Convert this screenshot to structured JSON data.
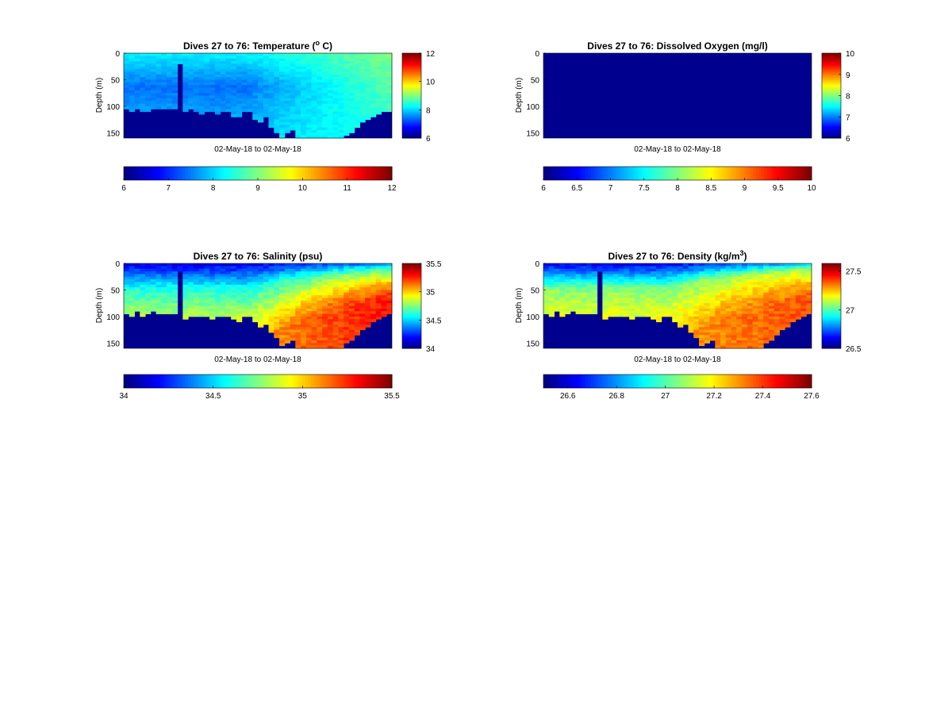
{
  "figure": {
    "colormap": "jet",
    "background": "#ffffff",
    "fill_color": "#00008f"
  },
  "chart_data": [
    {
      "type": "heatmap",
      "title": "Dives 27 to 76: Temperature (",
      "title_sup": "o",
      "title_tail": " C)",
      "ylabel": "Depth (m)",
      "xlabel": "02-May-18 to 02-May-18",
      "x": {
        "dives": [
          27,
          76
        ]
      },
      "ylim": [
        160,
        0
      ],
      "yticks": [
        "0",
        "50",
        "100",
        "150"
      ],
      "clim": [
        6,
        12
      ],
      "colorbar_right_ticks": [
        "6",
        "8",
        "10",
        "12"
      ],
      "colorbar_bottom_ticks": [
        "6",
        "7",
        "8",
        "9",
        "10",
        "11",
        "12"
      ],
      "bottom_depth_m": [
        105,
        108,
        104,
        110,
        108,
        106,
        105,
        106,
        104,
        105,
        22,
        110,
        105,
        112,
        115,
        108,
        110,
        116,
        112,
        110,
        118,
        120,
        112,
        112,
        124,
        130,
        122,
        140,
        150,
        160,
        150,
        145,
        158,
        160,
        160,
        160,
        160,
        160,
        160,
        160,
        160,
        155,
        150,
        140,
        128,
        125,
        120,
        115,
        110,
        110
      ],
      "profile": {
        "surface": 8.2,
        "midwater": 7.4,
        "deep": 8.0,
        "east_surface": 9.0,
        "east_deep": 8.4
      }
    },
    {
      "type": "heatmap",
      "title": "Dives 27 to 76: Dissolved Oxygen (mg/l)",
      "ylabel": "Depth (m)",
      "xlabel": "02-May-18 to 02-May-18",
      "x": {
        "dives": [
          27,
          76
        ]
      },
      "ylim": [
        160,
        0
      ],
      "yticks": [
        "0",
        "50",
        "100",
        "150"
      ],
      "clim": [
        6,
        10
      ],
      "colorbar_right_ticks": [
        "6",
        "7",
        "8",
        "9",
        "10"
      ],
      "colorbar_bottom_ticks": [
        "6",
        "6.5",
        "7",
        "7.5",
        "8",
        "8.5",
        "9",
        "9.5",
        "10"
      ],
      "uniform_value": 6
    },
    {
      "type": "heatmap",
      "title": "Dives 27 to 76: Salinity (psu)",
      "ylabel": "Depth (m)",
      "xlabel": "02-May-18 to 02-May-18",
      "x": {
        "dives": [
          27,
          76
        ]
      },
      "ylim": [
        160,
        0
      ],
      "yticks": [
        "0",
        "50",
        "100",
        "150"
      ],
      "clim": [
        34,
        35.5
      ],
      "colorbar_right_ticks": [
        "34",
        "34.5",
        "35",
        "35.5"
      ],
      "colorbar_bottom_ticks": [
        "34",
        "34.5",
        "35",
        "35.5"
      ],
      "bottom_depth_m": [
        95,
        100,
        92,
        98,
        95,
        92,
        96,
        94,
        95,
        95,
        15,
        105,
        98,
        102,
        100,
        98,
        104,
        100,
        98,
        100,
        104,
        108,
        100,
        102,
        112,
        118,
        115,
        128,
        140,
        155,
        150,
        145,
        158,
        160,
        158,
        160,
        158,
        160,
        160,
        160,
        160,
        152,
        145,
        135,
        125,
        118,
        112,
        105,
        100,
        95
      ],
      "profile": {
        "surface": 34.15,
        "mid": 34.6,
        "deep": 35.1,
        "east_deep": 35.3
      }
    },
    {
      "type": "heatmap",
      "title": "Dives 27 to 76: Density (kg/m",
      "title_sup": "3",
      "title_tail": ")",
      "ylabel": "Depth (m)",
      "xlabel": "02-May-18 to 02-May-18",
      "x": {
        "dives": [
          27,
          76
        ]
      },
      "ylim": [
        160,
        0
      ],
      "yticks": [
        "0",
        "50",
        "100",
        "150"
      ],
      "clim": [
        26.5,
        27.6
      ],
      "colorbar_right_ticks": [
        "26.5",
        "27",
        "27.5"
      ],
      "colorbar_bottom_ticks": [
        "26.6",
        "26.8",
        "27",
        "27.2",
        "27.4",
        "27.6"
      ],
      "bottom_depth_m": [
        95,
        100,
        92,
        98,
        95,
        92,
        96,
        94,
        95,
        95,
        15,
        105,
        98,
        102,
        100,
        98,
        104,
        100,
        98,
        100,
        104,
        108,
        100,
        102,
        112,
        118,
        115,
        128,
        140,
        155,
        150,
        145,
        158,
        160,
        158,
        160,
        158,
        160,
        160,
        160,
        160,
        152,
        145,
        135,
        125,
        118,
        112,
        105,
        100,
        95
      ],
      "profile": {
        "surface": 26.62,
        "mid": 27.05,
        "deep": 27.3,
        "east_deep": 27.38
      }
    }
  ]
}
